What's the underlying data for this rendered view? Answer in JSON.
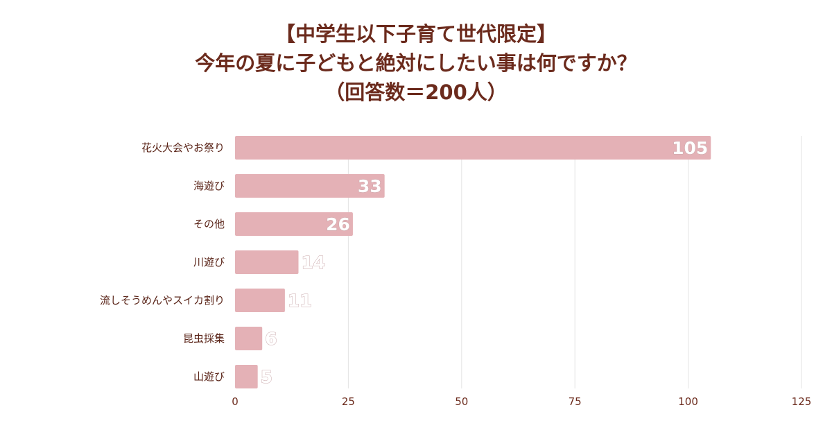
{
  "chart_data": {
    "type": "bar",
    "orientation": "horizontal",
    "title": [
      "【中学生以下子育て世代限定】",
      "今年の夏に子どもと絶対にしたい事は何ですか？",
      "（回答数＝200人）"
    ],
    "categories": [
      "花火大会やお祭り",
      "海遊び",
      "その他",
      "川遊び",
      "流しそうめんやスイカ割り",
      "昆虫採集",
      "山遊び"
    ],
    "values": [
      105,
      33,
      26,
      14,
      11,
      6,
      5
    ],
    "xlim": [
      0,
      125
    ],
    "xticks": [
      0,
      25,
      50,
      75,
      100,
      125
    ],
    "xlabel": "",
    "ylabel": "",
    "grid": true,
    "bar_color": "#e4b1b6"
  }
}
